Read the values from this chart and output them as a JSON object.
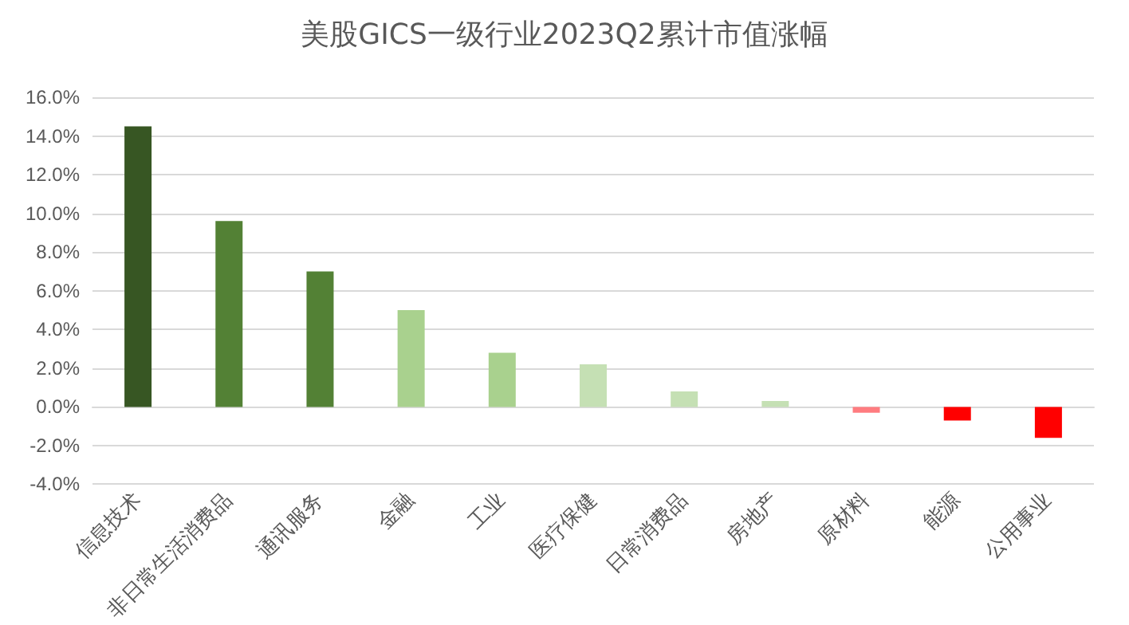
{
  "chart_data": {
    "type": "bar",
    "title": "美股GICS一级行业2023Q2累计市值涨幅",
    "categories": [
      "信息技术",
      "非日常生活消费品",
      "通讯服务",
      "金融",
      "工业",
      "医疗保健",
      "日常消费品",
      "房地产",
      "原材料",
      "能源",
      "公用事业"
    ],
    "values": [
      14.5,
      9.6,
      7.0,
      5.0,
      2.8,
      2.2,
      0.8,
      0.3,
      -0.3,
      -0.7,
      -1.6
    ],
    "colors": [
      "#375623",
      "#538135",
      "#538135",
      "#a9d18e",
      "#a9d18e",
      "#c5e0b4",
      "#c5e0b4",
      "#c5e0b4",
      "#ff7c80",
      "#ff0000",
      "#ff0000"
    ],
    "ylim": [
      -4,
      16
    ],
    "yticks": [
      {
        "value": -4,
        "label": "-4.0%"
      },
      {
        "value": -2,
        "label": "-2.0%"
      },
      {
        "value": 0,
        "label": "0.0%"
      },
      {
        "value": 2,
        "label": "2.0%"
      },
      {
        "value": 4,
        "label": "4.0%"
      },
      {
        "value": 6,
        "label": "6.0%"
      },
      {
        "value": 8,
        "label": "8.0%"
      },
      {
        "value": 10,
        "label": "10.0%"
      },
      {
        "value": 12,
        "label": "12.0%"
      },
      {
        "value": 14,
        "label": "14.0%"
      },
      {
        "value": 16,
        "label": "16.0%"
      }
    ],
    "grid": "y"
  }
}
